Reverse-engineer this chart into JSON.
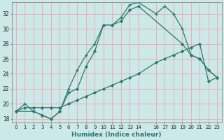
{
  "xlabel": "Humidex (Indice chaleur)",
  "background_color": "#cce8e8",
  "line_color": "#2a7a70",
  "grid_color": "#e8b0b0",
  "xlim": [
    -0.5,
    23.5
  ],
  "ylim": [
    17.5,
    33.5
  ],
  "xticks": [
    0,
    1,
    2,
    3,
    4,
    5,
    6,
    7,
    8,
    9,
    10,
    11,
    12,
    13,
    14,
    16,
    17,
    18,
    19,
    20,
    21,
    22,
    23
  ],
  "yticks": [
    18,
    20,
    22,
    24,
    26,
    28,
    30,
    32
  ],
  "line1_x": [
    0,
    1,
    2,
    3,
    4,
    5,
    6,
    7,
    8,
    9,
    10,
    11,
    12,
    13,
    14,
    16,
    17,
    18,
    19,
    20,
    21,
    22,
    23
  ],
  "line1_y": [
    19.0,
    20.0,
    19.0,
    18.5,
    18.0,
    19.0,
    22.0,
    24.5,
    26.5,
    28.0,
    30.5,
    30.5,
    31.5,
    33.2,
    33.5,
    32.0,
    33.0,
    32.0,
    30.0,
    26.5,
    26.0,
    24.5,
    23.5
  ],
  "line2_x": [
    0,
    2,
    3,
    4,
    5,
    6,
    7,
    8,
    9,
    10,
    11,
    12,
    13,
    14,
    19,
    20,
    21,
    22,
    23
  ],
  "line2_y": [
    19.0,
    19.0,
    18.5,
    18.0,
    19.0,
    21.5,
    22.0,
    25.0,
    27.0,
    30.5,
    30.5,
    31.0,
    32.5,
    33.0,
    28.0,
    26.5,
    26.0,
    24.5,
    23.5
  ],
  "line3_x": [
    0,
    1,
    2,
    3,
    4,
    5,
    6,
    7,
    8,
    9,
    10,
    11,
    12,
    13,
    14,
    16,
    17,
    18,
    19,
    20,
    21,
    22,
    23
  ],
  "line3_y": [
    19.0,
    19.5,
    19.5,
    19.5,
    19.5,
    19.5,
    20.0,
    20.5,
    21.0,
    21.5,
    22.0,
    22.5,
    23.0,
    23.5,
    24.0,
    25.5,
    26.0,
    26.5,
    27.0,
    27.5,
    28.0,
    23.0,
    23.5
  ]
}
